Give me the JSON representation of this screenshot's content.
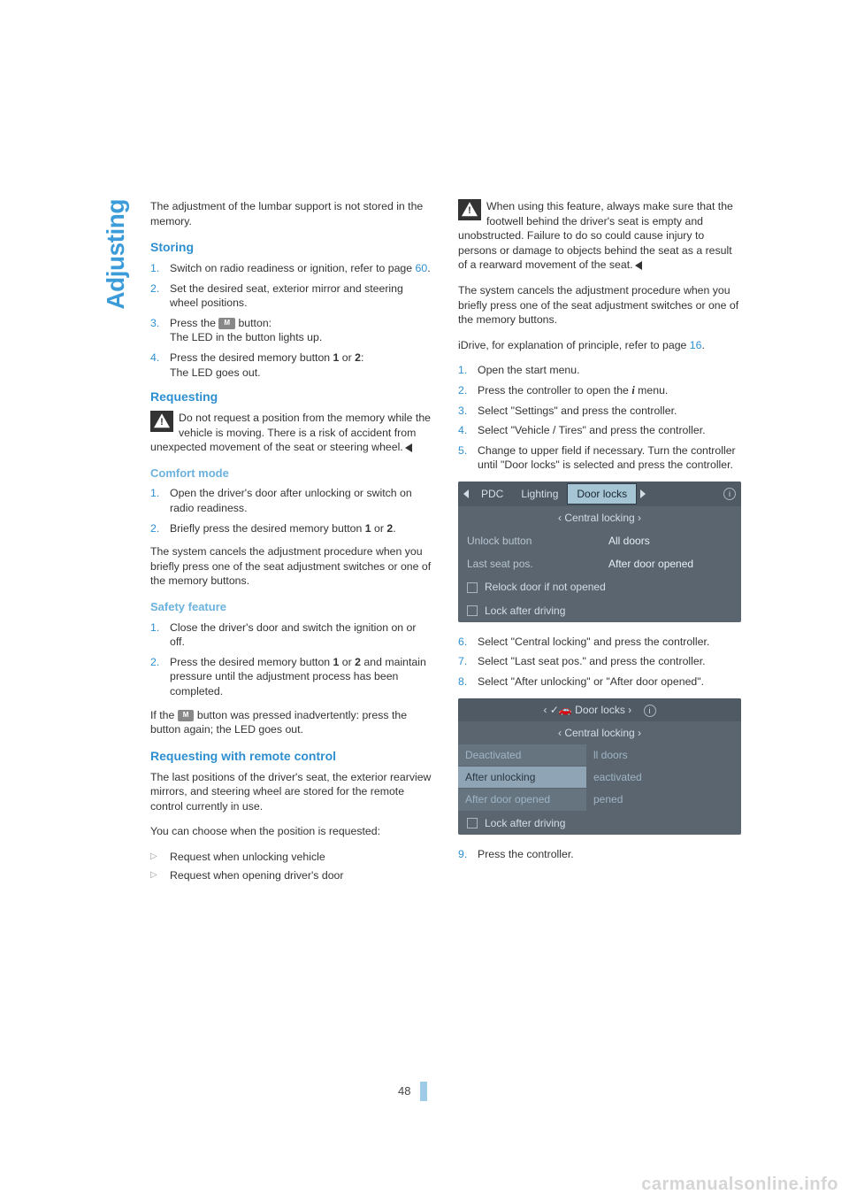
{
  "sidebar_title": "Adjusting",
  "page_number": "48",
  "watermark": "carmanualsonline.info",
  "left": {
    "intro": "The adjustment of the lumbar support is not stored in the memory.",
    "storing": {
      "heading": "Storing",
      "items": [
        {
          "pre": "Switch on radio readiness or ignition, refer to page ",
          "link": "60",
          "post": "."
        },
        {
          "text": "Set the desired seat, exterior mirror and steering wheel positions."
        },
        {
          "pre": "Press the ",
          "btn": "M",
          "mid": " button:",
          "line2": "The LED in the button lights up."
        },
        {
          "bolded": "Press the desired memory button 1 or 2:",
          "line2": "The LED goes out."
        }
      ]
    },
    "requesting": {
      "heading": "Requesting",
      "warn": "Do not request a position from the memory while the vehicle is moving. There is a risk of accident from unexpected movement of the seat or steering wheel."
    },
    "comfort": {
      "heading": "Comfort mode",
      "items": [
        "Open the driver's door after unlocking or switch on radio readiness.",
        "Briefly press the desired memory button 1 or 2."
      ],
      "after": "The system cancels the adjustment procedure when you briefly press one of the seat adjustment switches or one of the memory buttons."
    },
    "safety": {
      "heading": "Safety feature",
      "items": [
        "Close the driver's door and switch the ignition on or off.",
        "Press the desired memory button 1 or 2 and maintain pressure until the adjustment process has been completed."
      ],
      "after_pre": "If the ",
      "after_btn": "M",
      "after_post": " button was pressed inadvertently: press the button again; the LED goes out."
    },
    "remote": {
      "heading": "Requesting with remote control",
      "p1": "The last positions of the driver's seat, the exterior rearview mirrors, and steering wheel are stored for the remote control currently in use.",
      "p2": "You can choose when the position is requested:",
      "bullets": [
        "Request when unlocking vehicle",
        "Request when opening driver's door"
      ]
    }
  },
  "right": {
    "warn": "When using this feature, always make sure that the footwell behind the driver's seat is empty and unobstructed. Failure to do so could cause injury to persons or damage to objects behind the seat as a result of a rearward movement of the seat.",
    "p1": "The system cancels the adjustment procedure when you briefly press one of the seat adjustment switches or one of the memory buttons.",
    "p2_pre": "iDrive, for explanation of principle, refer to page ",
    "p2_link": "16",
    "p2_post": ".",
    "steps1": [
      "Open the start menu.",
      "Press the controller to open the i menu.",
      "Select \"Settings\" and press the controller.",
      "Select \"Vehicle / Tires\" and press the controller.",
      "Change to upper field if necessary. Turn the controller until \"Door locks\" is selected and press the controller."
    ],
    "ss1": {
      "tabs": [
        "PDC",
        "Lighting",
        "Door locks"
      ],
      "subhead": "Central locking",
      "rows": [
        [
          "Unlock button",
          "All doors"
        ],
        [
          "Last seat pos.",
          "After door opened"
        ]
      ],
      "checks": [
        "Relock door if not opened",
        "Lock after driving"
      ]
    },
    "steps2": [
      "Select \"Central locking\" and press the controller.",
      "Select \"Last seat pos.\" and press the controller.",
      "Select \"After unlocking\" or \"After door opened\"."
    ],
    "ss2": {
      "top": "Door locks",
      "subhead": "Central locking",
      "left_items": [
        "Deactivated",
        "After unlocking",
        "After door opened"
      ],
      "right_items": [
        "ll doors",
        "eactivated",
        "pened"
      ],
      "check": "Lock after driving"
    },
    "steps3": [
      "Press the controller."
    ]
  }
}
